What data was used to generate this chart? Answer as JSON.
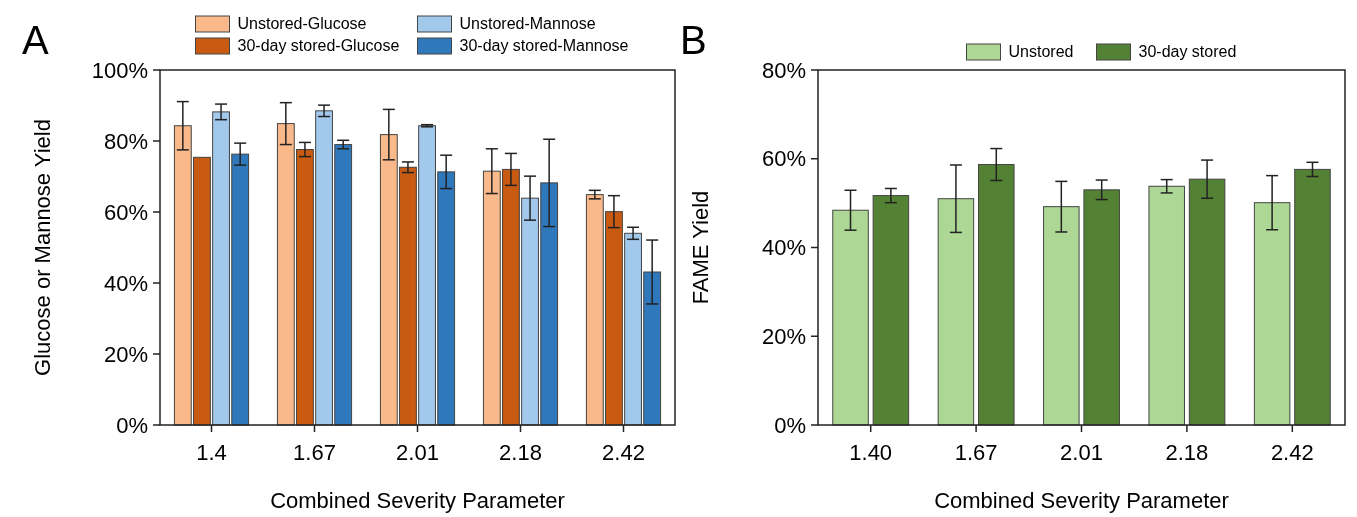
{
  "chart_data": [
    {
      "type": "bar",
      "annotations": [
        "A"
      ],
      "xlabel": "Combined Severity Parameter",
      "ylabel": "Glucose or Mannose Yield",
      "categories": [
        "1.4",
        "1.67",
        "2.01",
        "2.18",
        "2.42"
      ],
      "series": [
        {
          "name": "Unstored-Glucose",
          "color": "#f9b98a",
          "values": [
            84.3,
            84.9,
            81.8,
            71.5,
            64.9
          ],
          "errors": [
            6.8,
            5.9,
            7.1,
            6.3,
            1.2
          ]
        },
        {
          "name": "30-day stored-Glucose",
          "color": "#c95a11",
          "values": [
            75.4,
            77.6,
            72.6,
            72.0,
            60.1
          ],
          "errors": [
            null,
            2.0,
            1.5,
            4.5,
            4.5
          ]
        },
        {
          "name": "Unstored-Mannose",
          "color": "#a2c8ec",
          "values": [
            88.2,
            88.5,
            84.3,
            63.9,
            54.0
          ],
          "errors": [
            2.2,
            1.6,
            0.3,
            6.2,
            1.7
          ]
        },
        {
          "name": "30-day stored-Mannose",
          "color": "#2f78bb",
          "values": [
            76.3,
            79.0,
            71.3,
            68.2,
            43.1
          ],
          "errors": [
            3.1,
            1.2,
            4.7,
            12.3,
            9.0
          ]
        }
      ],
      "ylim": [
        0,
        100
      ],
      "yticks": [
        {
          "value": 0,
          "label": "0%"
        },
        {
          "value": 20,
          "label": "20%"
        },
        {
          "value": 40,
          "label": "40%"
        },
        {
          "value": 60,
          "label": "60%"
        },
        {
          "value": 80,
          "label": "80%"
        },
        {
          "value": 100,
          "label": "100%"
        }
      ],
      "legend": "top",
      "grid": false
    },
    {
      "type": "bar",
      "annotations": [
        "B"
      ],
      "xlabel": "Combined Severity Parameter",
      "ylabel": "FAME Yield",
      "categories": [
        "1.40",
        "1.67",
        "2.01",
        "2.18",
        "2.42"
      ],
      "series": [
        {
          "name": "Unstored",
          "color": "#acd795",
          "values": [
            48.4,
            51.0,
            49.2,
            53.8,
            50.1
          ],
          "errors": [
            4.5,
            7.6,
            5.7,
            1.5,
            6.1
          ]
        },
        {
          "name": "30-day stored",
          "color": "#548235",
          "values": [
            51.7,
            58.7,
            53.0,
            55.4,
            57.6
          ],
          "errors": [
            1.6,
            3.6,
            2.2,
            4.3,
            1.6
          ]
        }
      ],
      "ylim": [
        0,
        80
      ],
      "yticks": [
        {
          "value": 0,
          "label": "0%"
        },
        {
          "value": 20,
          "label": "20%"
        },
        {
          "value": 40,
          "label": "40%"
        },
        {
          "value": 60,
          "label": "60%"
        },
        {
          "value": 80,
          "label": "80%"
        }
      ],
      "legend": "top",
      "grid": false
    }
  ]
}
